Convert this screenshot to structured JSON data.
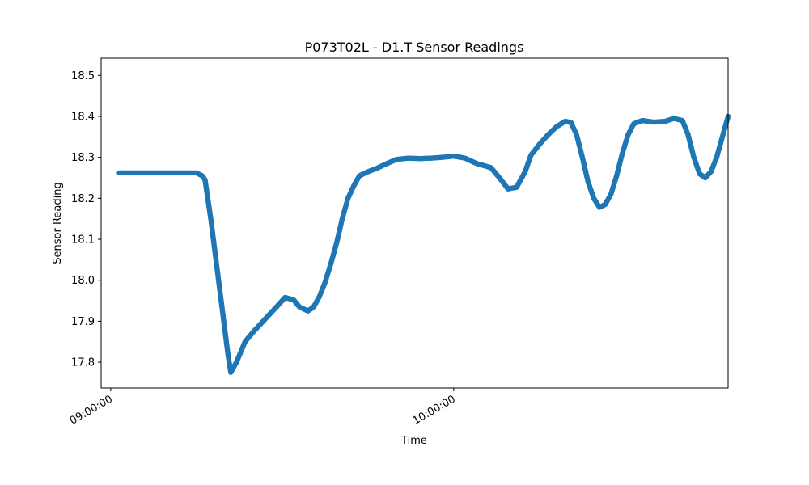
{
  "chart_data": {
    "type": "scatter",
    "title": "P073T02L - D1.T Sensor Readings",
    "xlabel": "Time",
    "ylabel": "Sensor Reading",
    "x_unit": "time of day",
    "xlim": [
      "08:58:19",
      "10:48:00"
    ],
    "ylim": [
      17.737,
      18.542
    ],
    "x_ticks": [
      "09:00:00",
      "10:00:00"
    ],
    "y_ticks": [
      17.8,
      17.9,
      18.0,
      18.1,
      18.2,
      18.3,
      18.4,
      18.5
    ],
    "grid": false,
    "legend": "none",
    "series_color": "#1f77b4",
    "points": [
      [
        "09:01:30",
        18.262
      ],
      [
        "09:05:00",
        18.262
      ],
      [
        "09:10:00",
        18.262
      ],
      [
        "09:15:00",
        18.262
      ],
      [
        "09:16:00",
        18.255
      ],
      [
        "09:16:30",
        18.245
      ],
      [
        "09:17:30",
        18.15
      ],
      [
        "09:18:30",
        18.04
      ],
      [
        "09:19:30",
        17.93
      ],
      [
        "09:20:30",
        17.82
      ],
      [
        "09:21:00",
        17.775
      ],
      [
        "09:22:00",
        17.8
      ],
      [
        "09:23:30",
        17.85
      ],
      [
        "09:25:00",
        17.875
      ],
      [
        "09:27:00",
        17.905
      ],
      [
        "09:29:00",
        17.935
      ],
      [
        "09:30:30",
        17.958
      ],
      [
        "09:32:00",
        17.952
      ],
      [
        "09:33:00",
        17.935
      ],
      [
        "09:34:30",
        17.925
      ],
      [
        "09:35:30",
        17.935
      ],
      [
        "09:36:30",
        17.96
      ],
      [
        "09:37:30",
        17.995
      ],
      [
        "09:38:30",
        18.04
      ],
      [
        "09:39:30",
        18.09
      ],
      [
        "09:40:30",
        18.15
      ],
      [
        "09:41:30",
        18.2
      ],
      [
        "09:42:30",
        18.23
      ],
      [
        "09:43:30",
        18.255
      ],
      [
        "09:45:00",
        18.265
      ],
      [
        "09:46:30",
        18.273
      ],
      [
        "09:48:00",
        18.283
      ],
      [
        "09:50:00",
        18.295
      ],
      [
        "09:52:00",
        18.298
      ],
      [
        "09:54:00",
        18.297
      ],
      [
        "09:56:00",
        18.298
      ],
      [
        "09:58:00",
        18.3
      ],
      [
        "10:00:00",
        18.303
      ],
      [
        "10:02:00",
        18.298
      ],
      [
        "10:04:00",
        18.285
      ],
      [
        "10:06:30",
        18.275
      ],
      [
        "10:08:00",
        18.25
      ],
      [
        "10:09:30",
        18.223
      ],
      [
        "10:11:00",
        18.227
      ],
      [
        "10:12:30",
        18.265
      ],
      [
        "10:13:30",
        18.305
      ],
      [
        "10:15:00",
        18.332
      ],
      [
        "10:16:30",
        18.355
      ],
      [
        "10:18:00",
        18.375
      ],
      [
        "10:19:30",
        18.388
      ],
      [
        "10:20:30",
        18.385
      ],
      [
        "10:21:30",
        18.355
      ],
      [
        "10:22:30",
        18.3
      ],
      [
        "10:23:30",
        18.24
      ],
      [
        "10:24:30",
        18.2
      ],
      [
        "10:25:30",
        18.178
      ],
      [
        "10:26:30",
        18.185
      ],
      [
        "10:27:30",
        18.21
      ],
      [
        "10:28:30",
        18.255
      ],
      [
        "10:29:30",
        18.31
      ],
      [
        "10:30:30",
        18.355
      ],
      [
        "10:31:30",
        18.382
      ],
      [
        "10:33:00",
        18.39
      ],
      [
        "10:35:00",
        18.386
      ],
      [
        "10:37:00",
        18.388
      ],
      [
        "10:38:30",
        18.395
      ],
      [
        "10:40:00",
        18.39
      ],
      [
        "10:41:00",
        18.355
      ],
      [
        "10:42:00",
        18.3
      ],
      [
        "10:43:00",
        18.26
      ],
      [
        "10:44:00",
        18.25
      ],
      [
        "10:45:00",
        18.265
      ],
      [
        "10:46:00",
        18.3
      ],
      [
        "10:47:00",
        18.35
      ],
      [
        "10:48:00",
        18.4
      ]
    ]
  }
}
